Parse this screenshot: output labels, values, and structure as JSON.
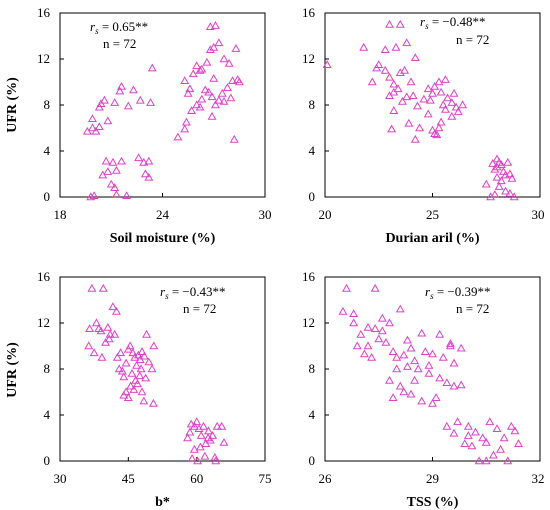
{
  "marker_color": "#e040c8",
  "chart_data": [
    {
      "type": "scatter",
      "title": "",
      "xlabel": "Soil moisture (%)",
      "ylabel": "UFR (%)",
      "xlim": [
        18,
        30
      ],
      "ylim": [
        0,
        16
      ],
      "xticks": [
        "18",
        "24",
        "30"
      ],
      "yticks": [
        "0",
        "4",
        "8",
        "12",
        "16"
      ],
      "annotation": {
        "rs_label": "r",
        "rs_sub": "s",
        "rs_value": " = 0.65**",
        "n_text": "n = 72"
      },
      "marker": "open-triangle",
      "points": [
        [
          19.6,
          5.7
        ],
        [
          19.9,
          6.0
        ],
        [
          20.1,
          5.7
        ],
        [
          20.3,
          6.1
        ],
        [
          19.9,
          6.8
        ],
        [
          20.3,
          7.8
        ],
        [
          20.4,
          8.1
        ],
        [
          20.6,
          8.4
        ],
        [
          21.2,
          8.2
        ],
        [
          21.5,
          9.2
        ],
        [
          21.6,
          9.6
        ],
        [
          22.0,
          7.9
        ],
        [
          22.7,
          8.4
        ],
        [
          23.3,
          8.2
        ],
        [
          23.4,
          11.2
        ],
        [
          22.3,
          9.3
        ],
        [
          20.8,
          6.6
        ],
        [
          20.5,
          1.9
        ],
        [
          20.8,
          2.2
        ],
        [
          20.7,
          3.1
        ],
        [
          21.1,
          3.0
        ],
        [
          21.6,
          3.1
        ],
        [
          21.3,
          2.3
        ],
        [
          21.0,
          1.1
        ],
        [
          21.2,
          0.8
        ],
        [
          21.3,
          0.2
        ],
        [
          21.9,
          0.1
        ],
        [
          22.6,
          3.4
        ],
        [
          22.9,
          3.0
        ],
        [
          23.2,
          3.1
        ],
        [
          23.0,
          2.0
        ],
        [
          23.2,
          1.7
        ],
        [
          20.0,
          0.1
        ],
        [
          19.8,
          0.0
        ],
        [
          24.9,
          5.2
        ],
        [
          25.3,
          5.9
        ],
        [
          25.4,
          6.5
        ],
        [
          25.7,
          7.5
        ],
        [
          26.0,
          8.0
        ],
        [
          26.2,
          7.8
        ],
        [
          25.3,
          10.1
        ],
        [
          25.6,
          9.4
        ],
        [
          25.8,
          10.7
        ],
        [
          26.0,
          11.4
        ],
        [
          26.2,
          11.0
        ],
        [
          26.3,
          11.1
        ],
        [
          26.6,
          11.7
        ],
        [
          26.8,
          12.8
        ],
        [
          27.0,
          13.0
        ],
        [
          26.8,
          14.8
        ],
        [
          27.1,
          14.9
        ],
        [
          27.3,
          13.4
        ],
        [
          27.6,
          12.0
        ],
        [
          27.9,
          11.6
        ],
        [
          28.3,
          12.9
        ],
        [
          28.4,
          10.2
        ],
        [
          28.1,
          10.1
        ],
        [
          27.8,
          9.5
        ],
        [
          27.5,
          9.0
        ],
        [
          27.3,
          8.4
        ],
        [
          27.1,
          8.0
        ],
        [
          26.9,
          8.7
        ],
        [
          26.7,
          9.1
        ],
        [
          26.5,
          9.3
        ],
        [
          26.3,
          8.5
        ],
        [
          27.0,
          10.3
        ],
        [
          28.0,
          8.6
        ],
        [
          28.2,
          5.0
        ],
        [
          25.5,
          9.0
        ],
        [
          26.9,
          7.0
        ],
        [
          27.6,
          8.3
        ],
        [
          28.5,
          10.0
        ]
      ]
    },
    {
      "type": "scatter",
      "title": "",
      "xlabel": "Durian aril (%)",
      "ylabel": "",
      "xlim": [
        20,
        30
      ],
      "ylim": [
        0,
        16
      ],
      "xticks": [
        "20",
        "25",
        "30"
      ],
      "yticks": [
        "0",
        "4",
        "8",
        "12",
        "16"
      ],
      "annotation": {
        "rs_label": "r",
        "rs_sub": "s",
        "rs_value": " = −0.48**",
        "n_text": "n = 72"
      },
      "marker": "open-triangle",
      "points": [
        [
          20.1,
          11.5
        ],
        [
          21.8,
          13.0
        ],
        [
          22.2,
          10.0
        ],
        [
          22.4,
          11.2
        ],
        [
          22.5,
          11.5
        ],
        [
          22.8,
          12.8
        ],
        [
          23.0,
          15.0
        ],
        [
          23.5,
          15.0
        ],
        [
          23.3,
          13.0
        ],
        [
          23.8,
          13.4
        ],
        [
          23.0,
          10.4
        ],
        [
          23.2,
          9.8
        ],
        [
          23.2,
          9.1
        ],
        [
          23.0,
          8.8
        ],
        [
          22.8,
          11.0
        ],
        [
          23.4,
          9.4
        ],
        [
          23.5,
          10.8
        ],
        [
          23.7,
          11.0
        ],
        [
          24.2,
          12.1
        ],
        [
          24.0,
          10.0
        ],
        [
          24.1,
          8.8
        ],
        [
          24.3,
          7.9
        ],
        [
          23.8,
          8.7
        ],
        [
          23.6,
          8.3
        ],
        [
          23.2,
          7.5
        ],
        [
          23.9,
          6.4
        ],
        [
          24.4,
          6.0
        ],
        [
          24.2,
          5.0
        ],
        [
          24.6,
          8.5
        ],
        [
          24.9,
          8.4
        ],
        [
          25.0,
          9.0
        ],
        [
          25.1,
          9.6
        ],
        [
          24.8,
          9.4
        ],
        [
          25.3,
          10.0
        ],
        [
          25.6,
          10.2
        ],
        [
          25.4,
          9.1
        ],
        [
          25.7,
          8.6
        ],
        [
          25.5,
          8.0
        ],
        [
          25.9,
          8.2
        ],
        [
          26.1,
          7.8
        ],
        [
          26.4,
          8.0
        ],
        [
          26.2,
          7.4
        ],
        [
          26.0,
          9.0
        ],
        [
          25.9,
          7.0
        ],
        [
          25.4,
          6.5
        ],
        [
          25.3,
          6.0
        ],
        [
          25.1,
          5.5
        ],
        [
          25.0,
          5.8
        ],
        [
          25.2,
          5.4
        ],
        [
          24.8,
          7.2
        ],
        [
          25.6,
          7.6
        ],
        [
          23.1,
          5.9
        ],
        [
          27.8,
          2.9
        ],
        [
          28.0,
          3.3
        ],
        [
          28.1,
          3.0
        ],
        [
          28.2,
          2.8
        ],
        [
          28.0,
          2.6
        ],
        [
          28.3,
          2.2
        ],
        [
          28.4,
          1.9
        ],
        [
          28.2,
          1.4
        ],
        [
          28.5,
          3.0
        ],
        [
          28.6,
          2.0
        ],
        [
          28.7,
          1.6
        ],
        [
          28.8,
          0.0
        ],
        [
          28.1,
          0.9
        ],
        [
          27.9,
          0.2
        ],
        [
          27.5,
          1.1
        ],
        [
          28.6,
          0.3
        ],
        [
          27.7,
          0.0
        ],
        [
          28.4,
          0.5
        ],
        [
          28.0,
          1.7
        ],
        [
          27.9,
          2.4
        ]
      ]
    },
    {
      "type": "scatter",
      "title": "",
      "xlabel": "b*",
      "ylabel": "UFR (%)",
      "xlim": [
        30,
        75
      ],
      "ylim": [
        0,
        16
      ],
      "xticks": [
        "30",
        "45",
        "60",
        "75"
      ],
      "yticks": [
        "0",
        "4",
        "8",
        "12",
        "16"
      ],
      "annotation": {
        "rs_label": "r",
        "rs_sub": "s",
        "rs_value": " = −0.43**",
        "n_text": "n = 72"
      },
      "marker": "open-triangle",
      "points": [
        [
          37.0,
          15.0
        ],
        [
          39.5,
          15.0
        ],
        [
          36.5,
          11.5
        ],
        [
          38.0,
          12.0
        ],
        [
          38.5,
          11.5
        ],
        [
          39.0,
          11.3
        ],
        [
          40.5,
          11.6
        ],
        [
          41.0,
          11.0
        ],
        [
          41.6,
          13.4
        ],
        [
          42.4,
          13.0
        ],
        [
          36.3,
          10.0
        ],
        [
          37.5,
          9.4
        ],
        [
          39.2,
          9.0
        ],
        [
          40.0,
          10.3
        ],
        [
          40.8,
          10.6
        ],
        [
          42.0,
          11.0
        ],
        [
          42.6,
          9.0
        ],
        [
          43.0,
          8.0
        ],
        [
          43.7,
          7.8
        ],
        [
          44.0,
          7.3
        ],
        [
          44.5,
          8.5
        ],
        [
          45.0,
          9.7
        ],
        [
          45.4,
          10.0
        ],
        [
          46.0,
          9.4
        ],
        [
          46.4,
          9.0
        ],
        [
          46.8,
          8.3
        ],
        [
          47.2,
          9.2
        ],
        [
          47.6,
          8.8
        ],
        [
          48.0,
          9.5
        ],
        [
          48.5,
          9.1
        ],
        [
          49.0,
          11.0
        ],
        [
          49.5,
          8.6
        ],
        [
          50.2,
          8.0
        ],
        [
          50.6,
          10.0
        ],
        [
          44.5,
          6.0
        ],
        [
          45.0,
          5.5
        ],
        [
          45.5,
          6.5
        ],
        [
          46.2,
          6.2
        ],
        [
          46.6,
          7.0
        ],
        [
          47.0,
          6.7
        ],
        [
          47.5,
          7.4
        ],
        [
          48.0,
          6.0
        ],
        [
          48.4,
          5.2
        ],
        [
          48.8,
          7.2
        ],
        [
          50.5,
          5.0
        ],
        [
          44.0,
          5.7
        ],
        [
          45.8,
          7.6
        ],
        [
          47.8,
          8.0
        ],
        [
          43.3,
          9.4
        ],
        [
          58.0,
          2.0
        ],
        [
          58.5,
          2.5
        ],
        [
          59.5,
          3.0
        ],
        [
          60.0,
          3.4
        ],
        [
          60.5,
          2.8
        ],
        [
          61.0,
          2.2
        ],
        [
          61.5,
          3.0
        ],
        [
          62.0,
          1.5
        ],
        [
          62.5,
          2.0
        ],
        [
          63.0,
          1.8
        ],
        [
          64.5,
          3.0
        ],
        [
          66.0,
          1.6
        ],
        [
          59.0,
          0.2
        ],
        [
          60.2,
          0.0
        ],
        [
          61.8,
          0.4
        ],
        [
          64.0,
          0.3
        ],
        [
          64.2,
          0.0
        ],
        [
          59.5,
          1.0
        ],
        [
          60.8,
          1.2
        ],
        [
          58.8,
          3.2
        ],
        [
          62.6,
          2.6
        ],
        [
          65.5,
          3.0
        ],
        [
          63.5,
          2.2
        ]
      ]
    },
    {
      "type": "scatter",
      "title": "",
      "xlabel": "TSS (%)",
      "ylabel": "",
      "xlim": [
        26,
        32
      ],
      "ylim": [
        0,
        16
      ],
      "xticks": [
        "26",
        "29",
        "32"
      ],
      "yticks": [
        "0",
        "4",
        "8",
        "12",
        "16"
      ],
      "annotation": {
        "rs_label": "r",
        "rs_sub": "s",
        "rs_value": " = −0.39**",
        "n_text": "n = 72"
      },
      "marker": "open-triangle",
      "points": [
        [
          26.6,
          15.0
        ],
        [
          27.4,
          15.0
        ],
        [
          26.5,
          13.0
        ],
        [
          26.8,
          12.8
        ],
        [
          27.0,
          11.0
        ],
        [
          27.2,
          11.6
        ],
        [
          27.4,
          11.5
        ],
        [
          27.6,
          11.3
        ],
        [
          27.8,
          12.0
        ],
        [
          28.1,
          13.2
        ],
        [
          26.9,
          10.0
        ],
        [
          27.1,
          9.3
        ],
        [
          27.3,
          9.0
        ],
        [
          27.5,
          10.6
        ],
        [
          27.7,
          10.3
        ],
        [
          27.9,
          9.5
        ],
        [
          28.2,
          9.2
        ],
        [
          28.5,
          8.7
        ],
        [
          28.8,
          9.5
        ],
        [
          29.0,
          9.3
        ],
        [
          29.3,
          9.0
        ],
        [
          29.5,
          10.0
        ],
        [
          29.6,
          8.5
        ],
        [
          28.0,
          8.0
        ],
        [
          28.3,
          8.2
        ],
        [
          28.6,
          8.0
        ],
        [
          28.9,
          7.6
        ],
        [
          29.2,
          7.2
        ],
        [
          29.4,
          6.8
        ],
        [
          29.6,
          6.5
        ],
        [
          27.8,
          7.0
        ],
        [
          28.1,
          6.5
        ],
        [
          28.4,
          5.8
        ],
        [
          28.7,
          5.2
        ],
        [
          29.0,
          5.0
        ],
        [
          27.9,
          5.5
        ],
        [
          28.2,
          6.0
        ],
        [
          28.5,
          7.0
        ],
        [
          29.8,
          6.6
        ],
        [
          29.2,
          11.0
        ],
        [
          28.7,
          11.1
        ],
        [
          29.5,
          10.2
        ],
        [
          29.7,
          3.4
        ],
        [
          30.0,
          3.0
        ],
        [
          30.2,
          2.5
        ],
        [
          30.4,
          2.0
        ],
        [
          30.6,
          3.4
        ],
        [
          30.8,
          2.8
        ],
        [
          31.0,
          2.0
        ],
        [
          31.2,
          3.0
        ],
        [
          31.4,
          1.5
        ],
        [
          30.9,
          1.0
        ],
        [
          30.3,
          0.0
        ],
        [
          30.5,
          0.0
        ],
        [
          31.1,
          0.0
        ],
        [
          29.9,
          1.5
        ],
        [
          30.7,
          0.5
        ],
        [
          29.6,
          2.4
        ],
        [
          30.1,
          1.3
        ],
        [
          31.3,
          2.6
        ],
        [
          29.4,
          3.0
        ],
        [
          30.0,
          2.2
        ],
        [
          28.4,
          9.8
        ],
        [
          27.6,
          12.4
        ],
        [
          26.8,
          12.0
        ],
        [
          27.2,
          10.0
        ],
        [
          28.9,
          8.3
        ],
        [
          29.1,
          5.5
        ],
        [
          28.0,
          9.0
        ],
        [
          28.3,
          10.5
        ],
        [
          29.8,
          9.8
        ],
        [
          30.5,
          1.6
        ]
      ]
    }
  ]
}
